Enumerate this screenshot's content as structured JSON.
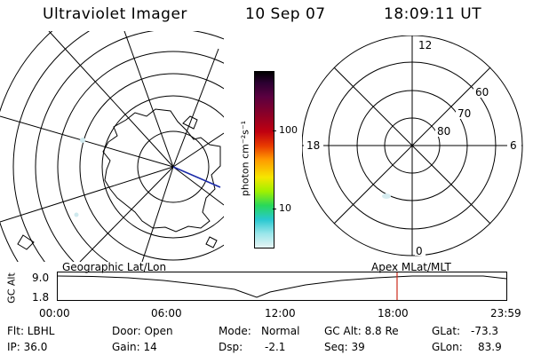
{
  "header": {
    "instrument": "Ultraviolet Imager",
    "date": "10 Sep 07",
    "time": "18:09:11 UT"
  },
  "left_map": {
    "label": "Geographic Lat/Lon"
  },
  "right_map": {
    "label": "Apex MLat/MLT",
    "mlt_labels": {
      "top": "12",
      "left": "18",
      "right": "6",
      "bottom": "0"
    },
    "lat_labels": [
      "60",
      "70",
      "80"
    ]
  },
  "colorbar": {
    "unit_label": "photon cm⁻²s⁻¹",
    "ticks": [
      {
        "label": "100",
        "value": 100
      },
      {
        "label": "10",
        "value": 10
      }
    ],
    "colors": [
      "#000000",
      "#2a0030",
      "#5a0040",
      "#8a0028",
      "#c00010",
      "#e83a00",
      "#ff9a00",
      "#f6e600",
      "#a0f000",
      "#28d85a",
      "#28c8d0",
      "#9ae6ea",
      "#e6f4f4"
    ]
  },
  "altitude_plot": {
    "ylabel": "GC Alt",
    "ymax_label": "9.0",
    "ymin_label": "1.8",
    "x_ticks": [
      "00:00",
      "06:00",
      "12:00",
      "18:00",
      "23:59"
    ],
    "current_time_fraction": 0.7564,
    "marker_color": "#cc2a1a"
  },
  "info": {
    "filter": "Flt: LBHL",
    "door": "Door: Open",
    "mode_label": "Mode:",
    "mode_value": "Normal",
    "gc_alt": "GC Alt: 8.8 Re",
    "glat_label": "GLat:",
    "glat_value": "-73.3",
    "ip": "IP: 36.0",
    "gain": "Gain: 14",
    "dsp_label": "Dsp:",
    "dsp_value": "-2.1",
    "seq": "Seq: 39",
    "glon_label": "GLon:",
    "glon_value": "83.9"
  }
}
